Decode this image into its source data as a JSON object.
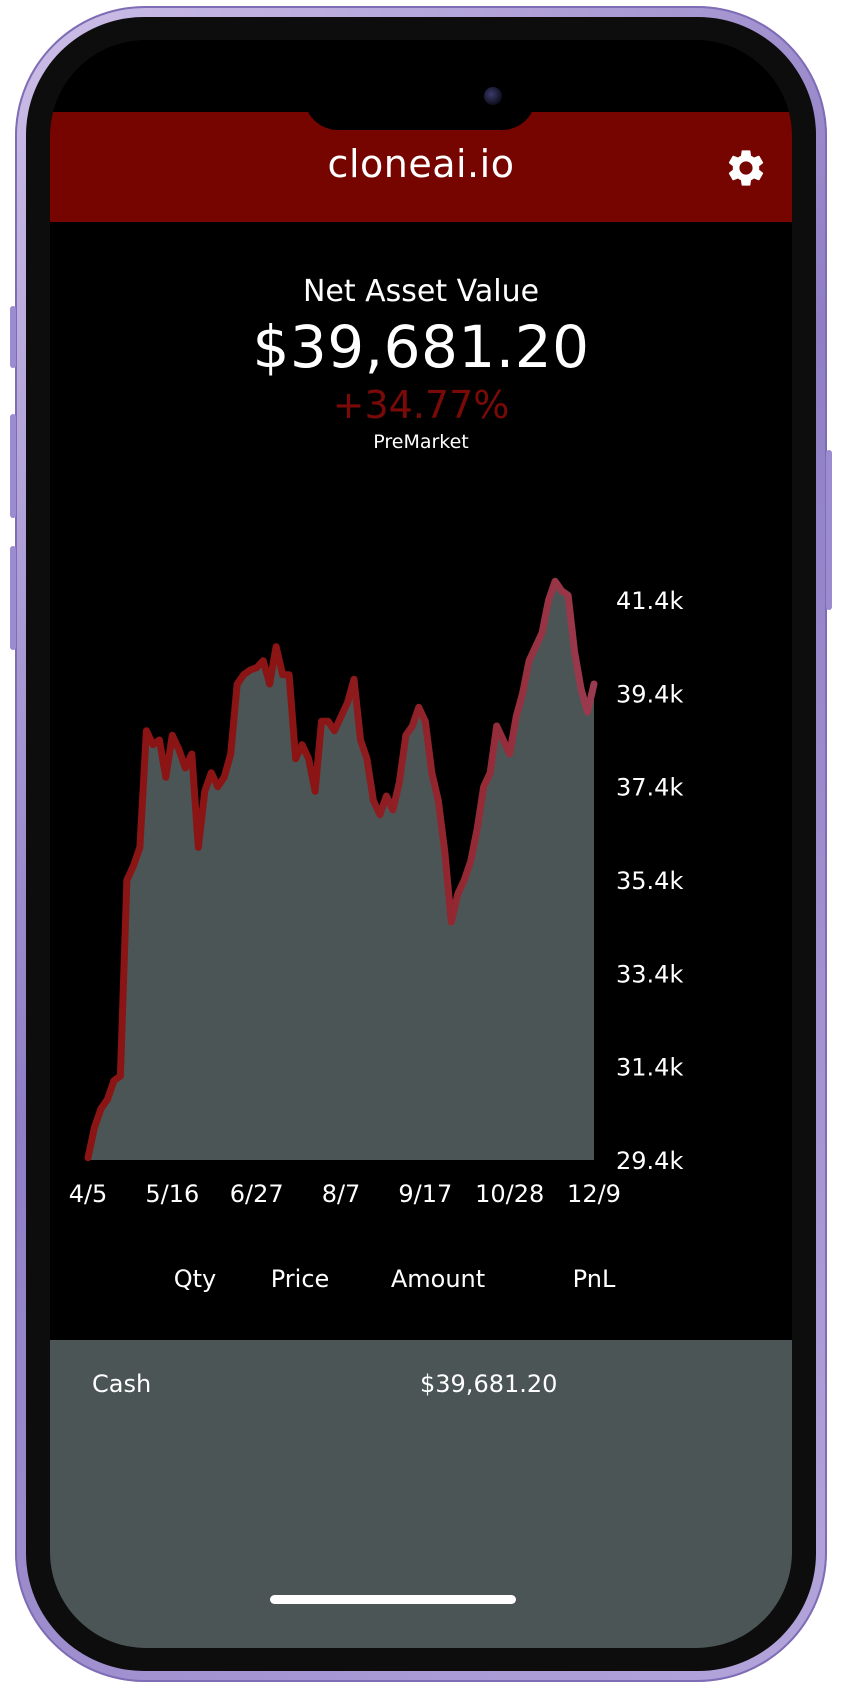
{
  "app": {
    "title": "cloneai.io",
    "settings_icon": "gear-icon",
    "accent_color": "#760500"
  },
  "summary": {
    "label": "Net Asset Value",
    "value": "$39,681.20",
    "change": "+34.77%",
    "session": "PreMarket",
    "change_color": "#7a0a07"
  },
  "chart_data": {
    "type": "area",
    "title": "",
    "xlabel": "",
    "ylabel": "",
    "x_tick_labels": [
      "4/5",
      "5/16",
      "6/27",
      "8/7",
      "9/17",
      "10/28",
      "12/9"
    ],
    "y_tick_labels": [
      "41.4k",
      "39.4k",
      "37.4k",
      "35.4k",
      "33.4k",
      "31.4k",
      "29.4k"
    ],
    "y_ticks": [
      41400,
      39400,
      37400,
      35400,
      33400,
      31400,
      29400
    ],
    "ylim": [
      29400,
      41400
    ],
    "x_start_tick_index": 0,
    "x_end_tick_index": 6,
    "fill_color": "#4b5556",
    "line_color": "#8b1515",
    "line_color_recent": "#9a3a4e",
    "y_axis_position": "right",
    "grid": false,
    "series": [
      {
        "values": [
          29450,
          30100,
          30500,
          30700,
          31100,
          31200,
          35400,
          35700,
          36100,
          38600,
          38300,
          38400,
          37600,
          38500,
          38200,
          37800,
          38100,
          36100,
          37300,
          37700,
          37400,
          37600,
          38100,
          39600,
          39800,
          39900,
          39950,
          40100,
          39600,
          40400,
          39800,
          39800,
          38000,
          38300,
          38000,
          37300,
          38800,
          38800,
          38600,
          38900,
          39200,
          39700,
          38400,
          38000,
          37100,
          36800,
          37200,
          36900,
          37500,
          38500,
          38700,
          39100,
          38800,
          37700,
          37100,
          36000,
          34500,
          35100,
          35400,
          35800,
          36500,
          37400,
          37700,
          38700,
          38400,
          38100,
          38900,
          39400,
          40100,
          40400,
          40700,
          41400,
          41800,
          41600,
          41500,
          40300,
          39500,
          39000,
          39600
        ]
      }
    ]
  },
  "holdings_table": {
    "columns": [
      "Qty",
      "Price",
      "Amount",
      "PnL"
    ],
    "rows": [
      {
        "name": "Cash",
        "amount": "$39,681.20"
      }
    ]
  }
}
